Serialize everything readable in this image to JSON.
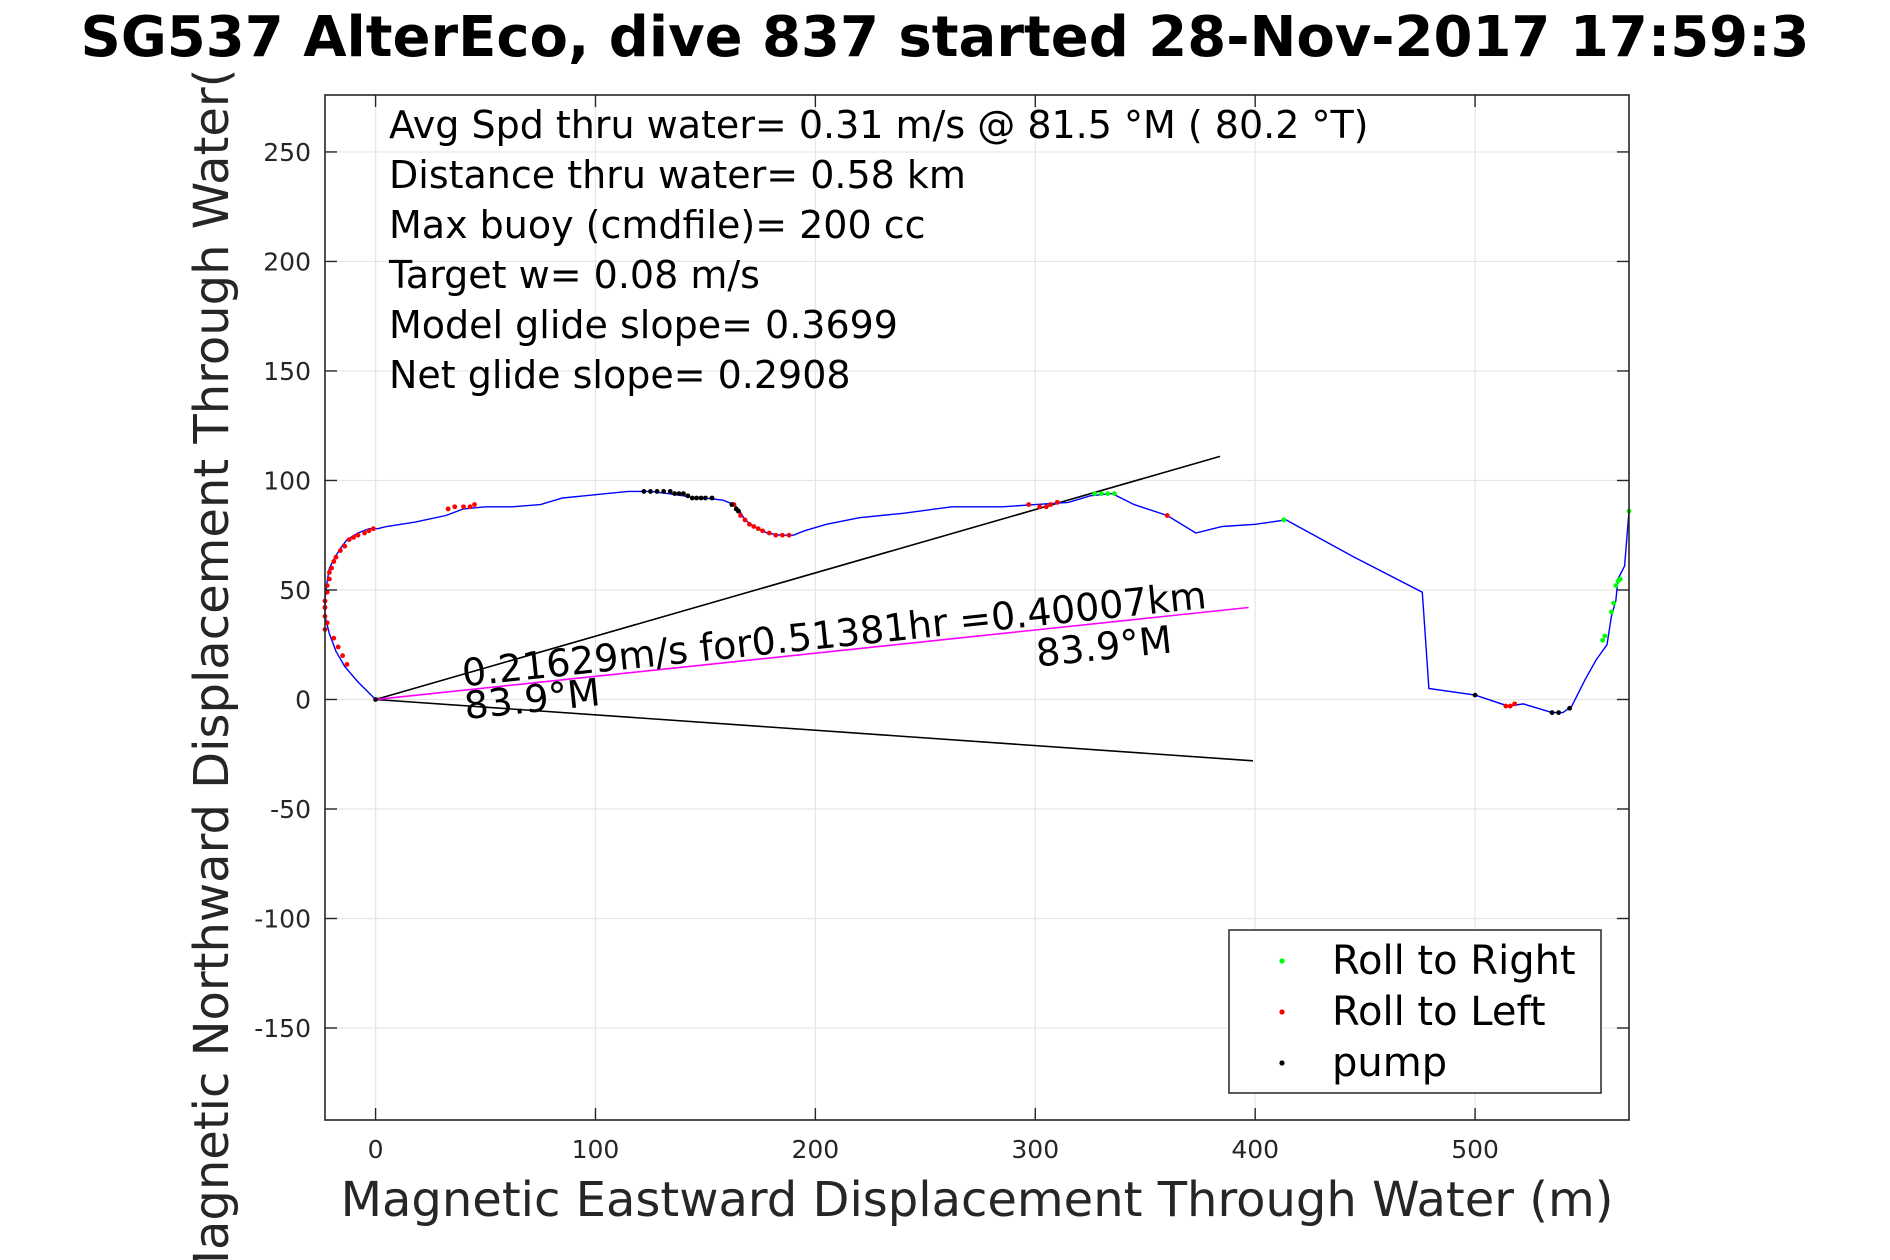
{
  "chart_data": {
    "type": "scatter",
    "title": "SG537 AlterEco, dive 837 started 28-Nov-2017 17:59:3",
    "xlabel": "Magnetic Eastward Displacement Through Water (m)",
    "ylabel": "Magnetic Northward Displacement Through Water(",
    "xlim": [
      -23,
      570
    ],
    "ylim": [
      -192,
      276
    ],
    "xticks": [
      0,
      100,
      200,
      300,
      400,
      500
    ],
    "yticks": [
      -150,
      -100,
      -50,
      0,
      50,
      100,
      150,
      200,
      250
    ],
    "grid": true,
    "legend_position": "bottom-right",
    "stats_lines": [
      "Avg Spd thru water=  0.31 m/s @  81.5 °M ( 80.2 °T)",
      "Distance thru water=  0.58 km",
      "Max buoy (cmdfile)= 200 cc",
      "Target w= 0.08 m/s",
      "Model glide slope= 0.3699",
      "Net glide slope= 0.2908"
    ],
    "annotations": [
      {
        "text": "0.21629m/s for0.51381hr =0.40007km",
        "x": 40,
        "y": 6
      },
      {
        "text": "83.9°M",
        "x": 41,
        "y": -9
      },
      {
        "text": "83.9°M",
        "x": 301,
        "y": 15
      }
    ],
    "track": {
      "name": "track",
      "color": "#0000ff",
      "points": [
        [
          0,
          0
        ],
        [
          -8,
          8
        ],
        [
          -14,
          15
        ],
        [
          -18,
          22
        ],
        [
          -21,
          30
        ],
        [
          -23,
          38
        ],
        [
          -23,
          46
        ],
        [
          -22,
          54
        ],
        [
          -21,
          60
        ],
        [
          -19,
          64
        ],
        [
          -16,
          69
        ],
        [
          -13,
          73
        ],
        [
          -8,
          76
        ],
        [
          -3,
          78
        ],
        [
          1,
          78
        ],
        [
          5,
          79
        ],
        [
          18,
          81
        ],
        [
          32,
          84
        ],
        [
          40,
          87
        ],
        [
          50,
          88
        ],
        [
          62,
          88
        ],
        [
          75,
          89
        ],
        [
          85,
          92
        ],
        [
          95,
          93
        ],
        [
          105,
          94
        ],
        [
          115,
          95
        ],
        [
          125,
          95
        ],
        [
          133,
          94
        ],
        [
          140,
          93
        ],
        [
          145,
          92
        ],
        [
          150,
          92
        ],
        [
          158,
          91
        ],
        [
          163,
          89
        ],
        [
          165,
          87
        ],
        [
          168,
          82
        ],
        [
          172,
          79
        ],
        [
          178,
          76
        ],
        [
          184,
          75
        ],
        [
          190,
          75
        ],
        [
          195,
          77
        ],
        [
          205,
          80
        ],
        [
          220,
          83
        ],
        [
          240,
          85
        ],
        [
          262,
          88
        ],
        [
          285,
          88
        ],
        [
          300,
          89
        ],
        [
          315,
          90
        ],
        [
          325,
          93
        ],
        [
          335,
          94
        ],
        [
          345,
          89
        ],
        [
          360,
          84
        ],
        [
          373,
          76
        ],
        [
          385,
          79
        ],
        [
          400,
          80
        ],
        [
          414,
          82
        ],
        [
          445,
          65
        ],
        [
          476,
          49
        ],
        [
          479,
          5
        ],
        [
          500,
          2
        ],
        [
          515,
          -3
        ],
        [
          522,
          -2
        ],
        [
          535,
          -6
        ],
        [
          540,
          -6
        ],
        [
          544,
          -3
        ],
        [
          550,
          9
        ],
        [
          555,
          18
        ],
        [
          560,
          25
        ],
        [
          562,
          38
        ],
        [
          564,
          45
        ],
        [
          565,
          55
        ],
        [
          568,
          61
        ],
        [
          570,
          86
        ]
      ]
    },
    "series": [
      {
        "name": "Roll to Right",
        "color": "#00ff00",
        "points": [
          [
            327,
            94
          ],
          [
            330,
            94
          ],
          [
            333,
            94
          ],
          [
            336,
            94
          ],
          [
            413,
            82
          ],
          [
            558,
            27
          ],
          [
            559,
            29
          ],
          [
            562,
            40
          ],
          [
            563,
            44
          ],
          [
            564,
            52
          ],
          [
            565,
            54
          ],
          [
            566,
            55
          ],
          [
            570,
            86
          ]
        ]
      },
      {
        "name": "Roll to Left",
        "color": "#ff0000",
        "points": [
          [
            -23,
            38
          ],
          [
            -23,
            42
          ],
          [
            -23,
            45
          ],
          [
            -22,
            49
          ],
          [
            -22,
            52
          ],
          [
            -21,
            55
          ],
          [
            -21,
            58
          ],
          [
            -20,
            60
          ],
          [
            -19,
            63
          ],
          [
            -18,
            65
          ],
          [
            -16,
            68
          ],
          [
            -14,
            70
          ],
          [
            -12,
            73
          ],
          [
            -10,
            74
          ],
          [
            -8,
            75
          ],
          [
            -5,
            76
          ],
          [
            -3,
            77
          ],
          [
            -1,
            78
          ],
          [
            -19,
            28
          ],
          [
            -17,
            24
          ],
          [
            -15,
            20
          ],
          [
            -13,
            16
          ],
          [
            -23,
            32
          ],
          [
            -22,
            35
          ],
          [
            33,
            87
          ],
          [
            36,
            88
          ],
          [
            40,
            88
          ],
          [
            43,
            88
          ],
          [
            45,
            89
          ],
          [
            163,
            89
          ],
          [
            165,
            86
          ],
          [
            166,
            84
          ],
          [
            168,
            82
          ],
          [
            170,
            80
          ],
          [
            172,
            79
          ],
          [
            174,
            78
          ],
          [
            176,
            77
          ],
          [
            179,
            76
          ],
          [
            182,
            75
          ],
          [
            185,
            75
          ],
          [
            188,
            75
          ],
          [
            297,
            89
          ],
          [
            302,
            88
          ],
          [
            305,
            88
          ],
          [
            307,
            89
          ],
          [
            310,
            90
          ],
          [
            360,
            84
          ],
          [
            514,
            -3
          ],
          [
            516,
            -3
          ],
          [
            518,
            -2
          ]
        ]
      },
      {
        "name": "pump",
        "color": "#000000",
        "points": [
          [
            0,
            0
          ],
          [
            122,
            95
          ],
          [
            125,
            95
          ],
          [
            128,
            95
          ],
          [
            131,
            95
          ],
          [
            134,
            95
          ],
          [
            136,
            94
          ],
          [
            138,
            94
          ],
          [
            140,
            94
          ],
          [
            142,
            93
          ],
          [
            144,
            92
          ],
          [
            146,
            92
          ],
          [
            148,
            92
          ],
          [
            150,
            92
          ],
          [
            153,
            92
          ],
          [
            162,
            89
          ],
          [
            164,
            87
          ],
          [
            165,
            86
          ],
          [
            500,
            2
          ],
          [
            535,
            -6
          ],
          [
            538,
            -6
          ],
          [
            543,
            -4
          ]
        ]
      }
    ],
    "reference_lines": [
      {
        "color": "#000000",
        "from": [
          0,
          0
        ],
        "to": [
          384,
          111
        ]
      },
      {
        "color": "#000000",
        "from": [
          0,
          0
        ],
        "to": [
          399,
          -28
        ]
      },
      {
        "color": "#ff00ff",
        "from": [
          0,
          0
        ],
        "to": [
          397,
          42
        ]
      }
    ]
  }
}
